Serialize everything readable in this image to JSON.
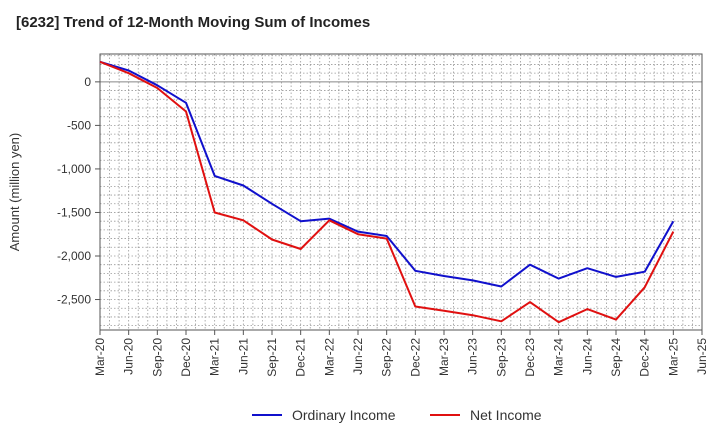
{
  "chart_data": {
    "type": "line",
    "title": "[6232]  Trend of 12-Month Moving Sum of Incomes",
    "xlabel": "",
    "ylabel": "Amount (million yen)",
    "ylim": [
      -2850,
      320
    ],
    "yticks": [
      0,
      -500,
      -1000,
      -1500,
      -2000,
      -2500
    ],
    "ytick_labels": [
      "0",
      "-500",
      "-1,000",
      "-1,500",
      "-2,000",
      "-2,500"
    ],
    "x_tick_labels": [
      "Mar-20",
      "Jun-20",
      "Sep-20",
      "Dec-20",
      "Mar-21",
      "Jun-21",
      "Sep-21",
      "Dec-21",
      "Mar-22",
      "Jun-22",
      "Sep-22",
      "Dec-22",
      "Mar-23",
      "Jun-23",
      "Sep-23",
      "Dec-23",
      "Mar-24",
      "Jun-24",
      "Sep-24",
      "Dec-24",
      "Mar-25",
      "Jun-25"
    ],
    "grid": true,
    "legend_position": "bottom-center",
    "series": [
      {
        "name": "Ordinary Income",
        "color": "#1010cc",
        "values": [
          230,
          130,
          -40,
          -240,
          -1080,
          -1190,
          -1400,
          -1600,
          -1570,
          -1720,
          -1770,
          -2170,
          -2230,
          -2280,
          -2350,
          -2100,
          -2260,
          -2140,
          -2240,
          -2180,
          -1600
        ]
      },
      {
        "name": "Net Income",
        "color": "#e01010",
        "values": [
          230,
          100,
          -70,
          -340,
          -1500,
          -1590,
          -1810,
          -1920,
          -1590,
          -1750,
          -1800,
          -2580,
          -2630,
          -2680,
          -2750,
          -2530,
          -2760,
          -2610,
          -2730,
          -2360,
          -1720
        ]
      }
    ]
  }
}
